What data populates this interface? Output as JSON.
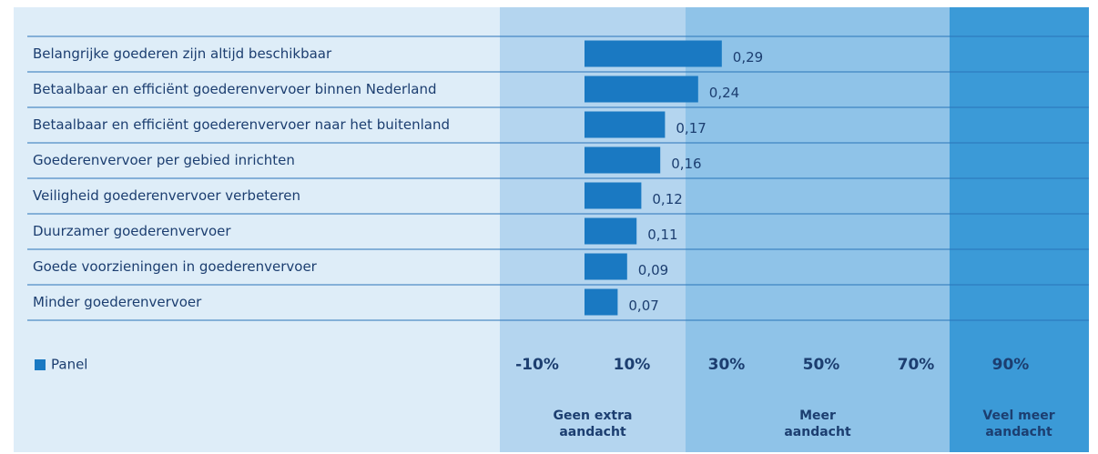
{
  "chart_data": {
    "type": "bar",
    "orientation": "horizontal",
    "categories": [
      "Belangrijke goederen zijn altijd beschikbaar",
      "Betaalbaar en efficiënt goederenvervoer binnen Nederland",
      "Betaalbaar en efficiënt goederenvervoer naar het buitenland",
      "Goederenvervoer per gebied inrichten",
      "Veiligheid goederenvervoer verbeteren",
      "Duurzamer goederenvervoer",
      "Goede voorzieningen in goederenvervoer",
      "Minder goederenvervoer"
    ],
    "series": [
      {
        "name": "Panel",
        "color": "#1a79c2",
        "values": [
          29,
          24,
          17,
          16,
          12,
          11,
          9,
          7
        ],
        "value_labels": [
          "0,29",
          "0,24",
          "0,17",
          "0,16",
          "0,12",
          "0,11",
          "0,09",
          "0,07"
        ]
      }
    ],
    "xlim": [
      -20,
      100
    ],
    "xticks": [
      {
        "value": -10,
        "label": "-10%"
      },
      {
        "value": 10,
        "label": "10%"
      },
      {
        "value": 30,
        "label": "30%"
      },
      {
        "value": 50,
        "label": "50%"
      },
      {
        "value": 70,
        "label": "70%"
      },
      {
        "value": 90,
        "label": "90%"
      }
    ],
    "zones": [
      "Geen extra aandacht",
      "Meer aandacht",
      "Veel meer aandacht"
    ],
    "legend": "bottom-left"
  }
}
